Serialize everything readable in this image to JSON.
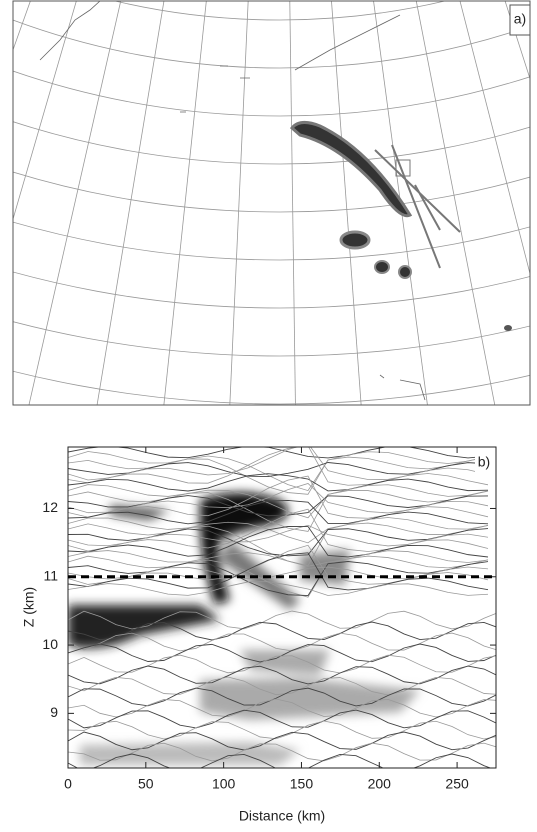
{
  "panel_a": {
    "label": "a)"
  },
  "panel_b": {
    "type": "contour",
    "label": "b)",
    "x_label": "Distance (km)",
    "y_label": "Z (km)",
    "xlim": [
      0,
      275
    ],
    "ylim": [
      8.2,
      12.9
    ],
    "xticks": [
      0,
      50,
      100,
      150,
      200,
      250
    ],
    "yticks": [
      9,
      10,
      11,
      12
    ],
    "reference_line": 11
  }
}
